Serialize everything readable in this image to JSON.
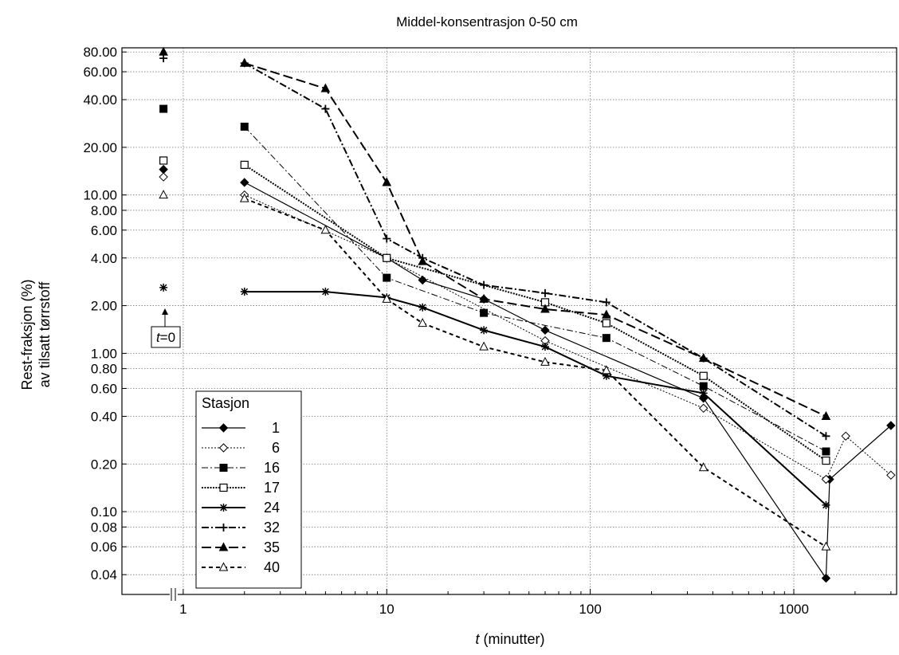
{
  "chart_data": {
    "type": "line",
    "title": "Middel-konsentrasjon 0-50 cm",
    "xlabel_italic": "t",
    "xlabel_rest": " (minutter)",
    "ylabel_line1": "Rest-fraksjon (%)",
    "ylabel_line2": "av tilsatt tørrstoff",
    "x_scale": "log",
    "y_scale": "log",
    "xlim": [
      0.5,
      3200
    ],
    "ylim": [
      0.03,
      85
    ],
    "x_ticks": [
      1,
      10,
      100,
      1000
    ],
    "x_tick_labels": [
      "1",
      "10",
      "100",
      "1000"
    ],
    "y_ticks": [
      0.04,
      0.06,
      0.08,
      0.1,
      0.2,
      0.4,
      0.6,
      0.8,
      1,
      2,
      4,
      6,
      8,
      10,
      20,
      40,
      60,
      80
    ],
    "y_tick_labels": [
      "0.04",
      "0.06",
      "0.08",
      "0.10",
      "0.20",
      "0.40",
      "0.60",
      "0.80",
      "1.00",
      "2.00",
      "4.00",
      "6.00",
      "8.00",
      "10.00",
      "20.00",
      "40.00",
      "60.00",
      "80.00"
    ],
    "grid": true,
    "legend_title": "Stasjon",
    "legend_position": "bottom-left",
    "t0_label_italic": "t",
    "t0_label_rest": "=0",
    "initial_x": 0.8,
    "series": [
      {
        "name": "1",
        "marker": "diamond-filled",
        "dash": "",
        "width": 1.2,
        "initial": 14.5,
        "x": [
          2,
          10,
          15,
          30,
          60,
          360,
          1440,
          1500,
          3000
        ],
        "y": [
          12,
          4,
          2.9,
          2.2,
          1.4,
          0.52,
          0.038,
          0.16,
          0.35
        ]
      },
      {
        "name": "6",
        "marker": "diamond-open",
        "dash": "2 2",
        "width": 1,
        "initial": 13,
        "x": [
          2,
          10,
          60,
          360,
          1440,
          1800,
          3000
        ],
        "y": [
          10,
          4,
          1.2,
          0.45,
          0.16,
          0.3,
          0.17
        ]
      },
      {
        "name": "16",
        "marker": "square-filled",
        "dash": "8 3 2 3",
        "width": 1,
        "initial": 35,
        "x": [
          2,
          10,
          30,
          120,
          360,
          1440
        ],
        "y": [
          27,
          3,
          1.8,
          1.25,
          0.62,
          0.24
        ]
      },
      {
        "name": "17",
        "marker": "square-open",
        "dash": "2 1.5",
        "width": 2,
        "initial": 16.5,
        "x": [
          2,
          10,
          60,
          120,
          360,
          1440
        ],
        "y": [
          15.5,
          4,
          2.1,
          1.55,
          0.72,
          0.21
        ]
      },
      {
        "name": "24",
        "marker": "asterisk",
        "dash": "",
        "width": 2,
        "initial": 2.6,
        "x": [
          2,
          5,
          10,
          15,
          30,
          60,
          120,
          360,
          1440
        ],
        "y": [
          2.45,
          2.45,
          2.25,
          1.95,
          1.4,
          1.1,
          0.72,
          0.56,
          0.11
        ]
      },
      {
        "name": "32",
        "marker": "plus",
        "dash": "9 3 2 3",
        "width": 2,
        "initial": 73,
        "x": [
          2,
          5,
          10,
          15,
          30,
          60,
          120,
          360,
          1440
        ],
        "y": [
          68,
          35,
          5.3,
          4,
          2.7,
          2.4,
          2.1,
          0.93,
          0.3
        ]
      },
      {
        "name": "35",
        "marker": "triangle-filled",
        "dash": "12 5",
        "width": 2,
        "initial": 80,
        "x": [
          2,
          5,
          10,
          15,
          30,
          60,
          120,
          360,
          1440
        ],
        "y": [
          68,
          47,
          12,
          3.8,
          2.2,
          1.9,
          1.75,
          0.93,
          0.4
        ]
      },
      {
        "name": "40",
        "marker": "triangle-open",
        "dash": "5 4",
        "width": 2,
        "initial": 10,
        "x": [
          2,
          5,
          10,
          15,
          30,
          60,
          120,
          360,
          1440
        ],
        "y": [
          9.5,
          6,
          2.2,
          1.55,
          1.1,
          0.88,
          0.78,
          0.19,
          0.06
        ]
      }
    ]
  }
}
